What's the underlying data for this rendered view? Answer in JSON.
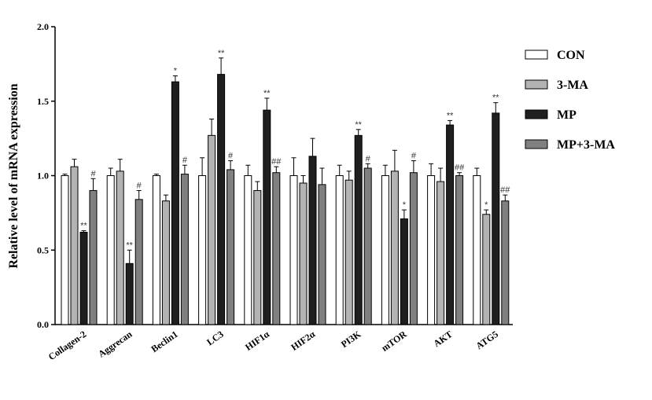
{
  "chart_data": {
    "type": "bar",
    "title": "",
    "xlabel": "",
    "ylabel": "Relative level of mRNA expression",
    "ylim": [
      0,
      2.0
    ],
    "yticks": [
      "0.0",
      "0.5",
      "1.0",
      "1.5",
      "2.0"
    ],
    "grid": false,
    "legend_position": "right",
    "categories": [
      "Collagen-2",
      "Aggrecan",
      "Beclin1",
      "LC3",
      "HIF1α",
      "HIF2α",
      "PI3K",
      "mTOR",
      "AKT",
      "ATG5"
    ],
    "series": [
      {
        "name": "CON",
        "color": "#ffffff",
        "values": [
          1.0,
          1.0,
          1.0,
          1.0,
          1.0,
          1.0,
          1.0,
          1.0,
          1.0,
          1.0
        ],
        "errors": [
          0.01,
          0.05,
          0.01,
          0.12,
          0.07,
          0.12,
          0.07,
          0.07,
          0.08,
          0.05
        ],
        "annotations": [
          "",
          "",
          "",
          "",
          "",
          "",
          "",
          "",
          "",
          ""
        ]
      },
      {
        "name": "3-MA",
        "color": "#b3b3b3",
        "values": [
          1.06,
          1.03,
          0.83,
          1.27,
          0.9,
          0.95,
          0.97,
          1.03,
          0.96,
          0.74
        ],
        "errors": [
          0.05,
          0.08,
          0.04,
          0.11,
          0.06,
          0.05,
          0.06,
          0.14,
          0.09,
          0.03
        ],
        "annotations": [
          "",
          "",
          "",
          "",
          "",
          "",
          "",
          "",
          "",
          "*"
        ]
      },
      {
        "name": "MP",
        "color": "#1f1f1f",
        "values": [
          0.62,
          0.41,
          1.63,
          1.68,
          1.44,
          1.13,
          1.27,
          0.71,
          1.34,
          1.42
        ],
        "errors": [
          0.01,
          0.09,
          0.04,
          0.11,
          0.08,
          0.12,
          0.04,
          0.06,
          0.03,
          0.07
        ],
        "annotations": [
          "**",
          "**",
          "*",
          "**",
          "**",
          "",
          "**",
          "*",
          "**",
          "**"
        ]
      },
      {
        "name": "MP+3-MA",
        "color": "#808080",
        "values": [
          0.9,
          0.84,
          1.01,
          1.04,
          1.02,
          0.94,
          1.05,
          1.02,
          1.0,
          0.83
        ],
        "errors": [
          0.08,
          0.06,
          0.06,
          0.06,
          0.04,
          0.11,
          0.03,
          0.08,
          0.02,
          0.04
        ],
        "annotations": [
          "#",
          "#",
          "#",
          "#",
          "##",
          "",
          "#",
          "#",
          "##",
          "##"
        ]
      }
    ]
  }
}
